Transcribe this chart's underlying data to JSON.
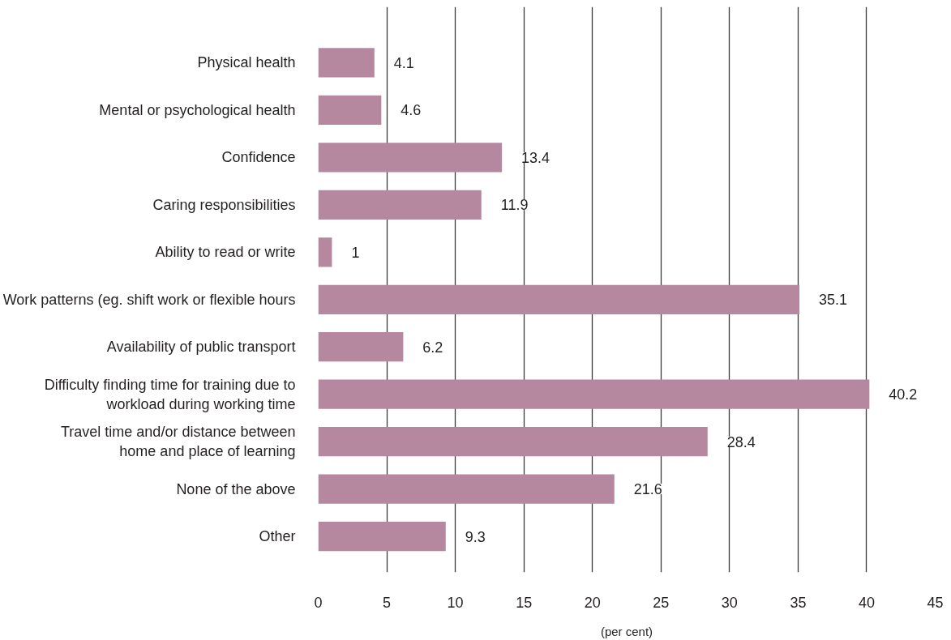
{
  "chart_data": {
    "type": "bar",
    "orientation": "horizontal",
    "categories": [
      "Physical health",
      "Mental or psychological health",
      "Confidence",
      "Caring responsibilities",
      "Ability to read or write",
      "Work patterns (eg. shift work or flexible hours",
      "Availability of public transport",
      "Difficulty finding time for training due to\nworkload during working time",
      "Travel time and/or distance between\nhome and place of learning",
      "None of the above",
      "Other"
    ],
    "values": [
      4.1,
      4.6,
      13.4,
      11.9,
      1,
      35.1,
      6.2,
      40.2,
      28.4,
      21.6,
      9.3
    ],
    "color": "#b6889f",
    "xlim": [
      0,
      45
    ],
    "xticks": [
      0,
      5,
      10,
      15,
      20,
      25,
      30,
      35,
      40,
      45
    ],
    "xlabel": "(per cent)",
    "grid": "x",
    "data_labels": true
  }
}
